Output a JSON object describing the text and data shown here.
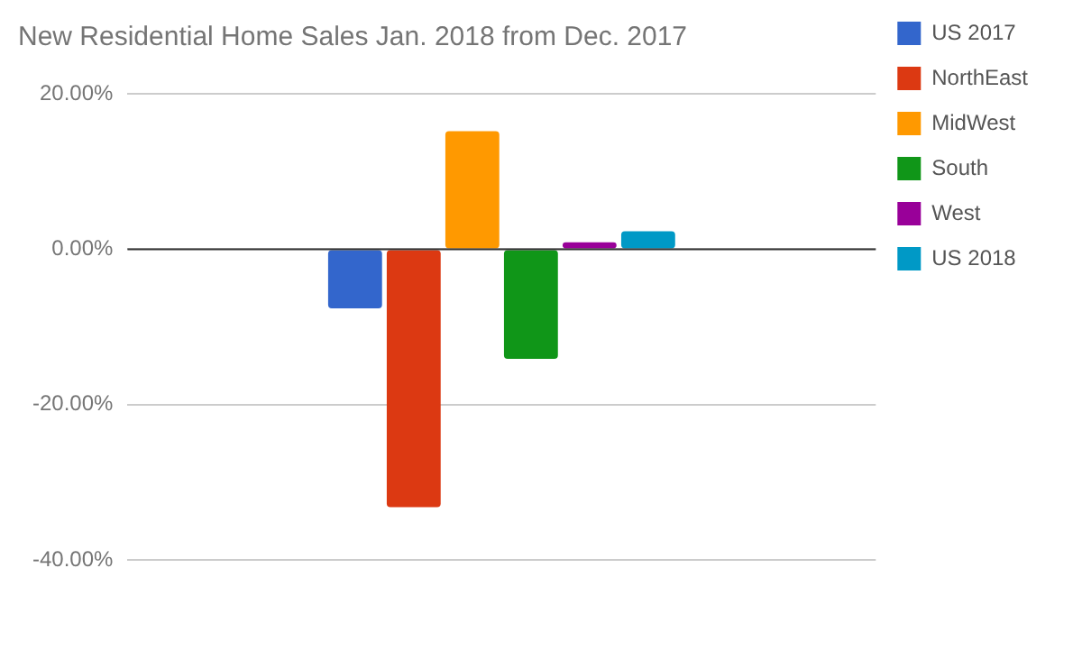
{
  "chart_data": {
    "type": "bar",
    "title": "New Residential Home Sales Jan. 2018 from Dec. 2017",
    "categories": [
      null
    ],
    "series": [
      {
        "name": "US 2017",
        "color": "#3366cc",
        "values": [
          -7.6
        ]
      },
      {
        "name": "NorthEast",
        "color": "#dc3912",
        "values": [
          -33.2
        ]
      },
      {
        "name": "MidWest",
        "color": "#ff9900",
        "values": [
          15.2
        ]
      },
      {
        "name": "South",
        "color": "#109618",
        "values": [
          -14.1
        ]
      },
      {
        "name": "West",
        "color": "#990099",
        "values": [
          0.9
        ]
      },
      {
        "name": "US 2018",
        "color": "#0099c6",
        "values": [
          2.3
        ]
      }
    ],
    "ylim": [
      -40,
      20
    ],
    "yticks": [
      {
        "value": -40,
        "label": "-40.00%"
      },
      {
        "value": -20,
        "label": "-20.00%"
      },
      {
        "value": 0,
        "label": "0.00%"
      },
      {
        "value": 20,
        "label": "20.00%"
      }
    ],
    "grid": "y",
    "legend": "right"
  }
}
